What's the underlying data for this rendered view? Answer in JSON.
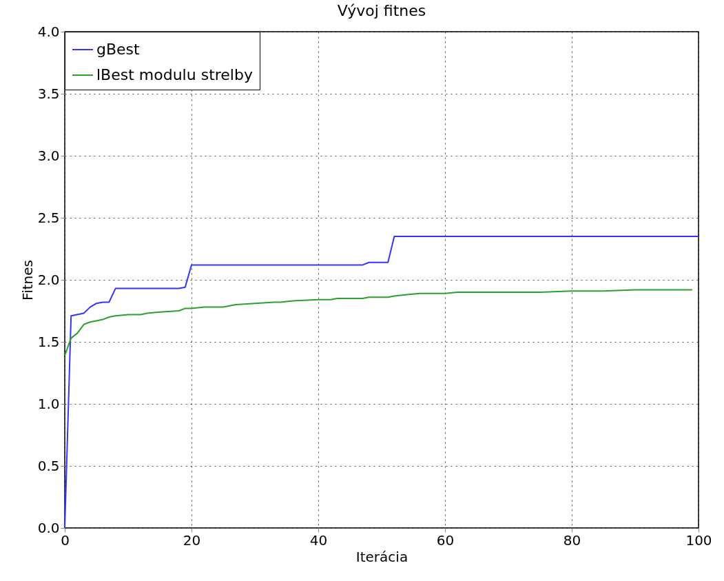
{
  "chart_data": {
    "type": "line",
    "title": "Vývoj fitnes",
    "xlabel": "Iterácia",
    "ylabel": "Fitnes",
    "xlim": [
      0,
      100
    ],
    "xticks": [
      0,
      20,
      40,
      60,
      80,
      100
    ],
    "ylim": [
      0,
      4
    ],
    "yticks": [
      {
        "value": 0,
        "label": "0.0"
      },
      {
        "value": 0.5,
        "label": "0.5"
      },
      {
        "value": 1,
        "label": "1.0"
      },
      {
        "value": 1.5,
        "label": "1.5"
      },
      {
        "value": 2,
        "label": "2.0"
      },
      {
        "value": 2.5,
        "label": "2.5"
      },
      {
        "value": 3,
        "label": "3.0"
      },
      {
        "value": 3.5,
        "label": "3.5"
      },
      {
        "value": 4,
        "label": "4.0"
      }
    ],
    "grid": true,
    "legend": "top left",
    "marker": "none",
    "line_style": "solid",
    "series": [
      {
        "name": "gBest",
        "color": "#3333ff",
        "x": [
          0,
          1,
          3,
          4,
          5,
          6,
          7,
          8,
          18,
          19,
          20,
          47,
          48,
          51,
          52,
          100
        ],
        "values": [
          0,
          1.71,
          1.73,
          1.78,
          1.81,
          1.82,
          1.82,
          1.93,
          1.93,
          1.94,
          2.12,
          2.12,
          2.14,
          2.14,
          2.35,
          2.35
        ]
      },
      {
        "name": "lBest modulu strelby",
        "color": "#2ca02c",
        "x": [
          0,
          1,
          2,
          3,
          4,
          5,
          6,
          7,
          8,
          10,
          12,
          13,
          15,
          18,
          19,
          20,
          22,
          25,
          27,
          30,
          33,
          34,
          36,
          40,
          42,
          43,
          47,
          48,
          51,
          52,
          54,
          56,
          60,
          62,
          70,
          75,
          80,
          85,
          90,
          99
        ],
        "values": [
          1.39,
          1.53,
          1.57,
          1.64,
          1.66,
          1.67,
          1.68,
          1.7,
          1.71,
          1.72,
          1.72,
          1.73,
          1.74,
          1.75,
          1.77,
          1.77,
          1.78,
          1.78,
          1.8,
          1.81,
          1.82,
          1.82,
          1.83,
          1.84,
          1.84,
          1.85,
          1.85,
          1.86,
          1.86,
          1.87,
          1.88,
          1.89,
          1.89,
          1.9,
          1.9,
          1.9,
          1.91,
          1.91,
          1.92,
          1.92
        ]
      }
    ]
  }
}
